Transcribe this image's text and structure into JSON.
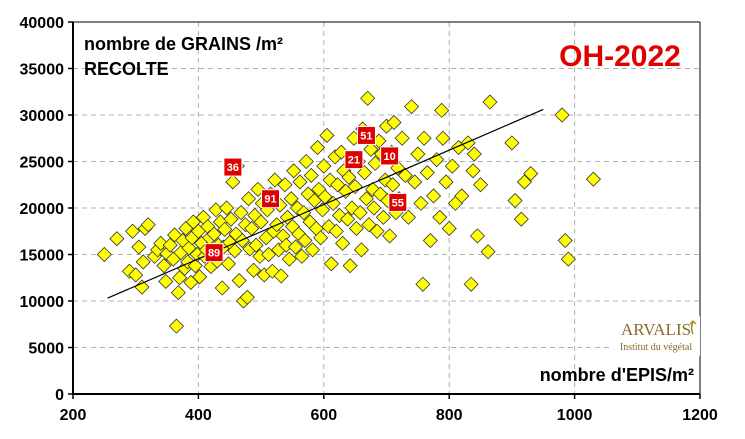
{
  "chart_data": {
    "type": "scatter",
    "title": "OH-2022",
    "ylabel_line1": "nombre de GRAINS /m²",
    "ylabel_line2": "RECOLTE",
    "xlabel": "nombre d'EPIS/m²",
    "xlim": [
      200,
      1200
    ],
    "ylim": [
      0,
      40000
    ],
    "xticks": [
      "200",
      "400",
      "600",
      "800",
      "1000",
      "1200"
    ],
    "yticks": [
      "0",
      "5000",
      "10000",
      "15000",
      "20000",
      "25000",
      "30000",
      "35000",
      "40000"
    ],
    "grid": "dashed",
    "colors": {
      "marker": "#ffff00",
      "marker_edge": "#333333",
      "badge": "#e00000",
      "title": "#e00000",
      "trend": "#000000"
    },
    "trendline": {
      "x": [
        255,
        950
      ],
      "y": [
        10300,
        30600
      ]
    },
    "points": [
      [
        250,
        15000
      ],
      [
        270,
        16700
      ],
      [
        290,
        13200
      ],
      [
        295,
        17500
      ],
      [
        300,
        12800
      ],
      [
        305,
        15800
      ],
      [
        310,
        11500
      ],
      [
        312,
        14200
      ],
      [
        315,
        17800
      ],
      [
        320,
        18200
      ],
      [
        330,
        14800
      ],
      [
        335,
        15500
      ],
      [
        340,
        16200
      ],
      [
        345,
        13800
      ],
      [
        348,
        12100
      ],
      [
        350,
        15100
      ],
      [
        355,
        16000
      ],
      [
        360,
        14500
      ],
      [
        362,
        17100
      ],
      [
        365,
        7300
      ],
      [
        368,
        10900
      ],
      [
        370,
        12500
      ],
      [
        372,
        15200
      ],
      [
        375,
        16500
      ],
      [
        378,
        13500
      ],
      [
        380,
        17800
      ],
      [
        383,
        14200
      ],
      [
        385,
        15700
      ],
      [
        388,
        12000
      ],
      [
        390,
        16800
      ],
      [
        392,
        18500
      ],
      [
        395,
        13800
      ],
      [
        398,
        15000
      ],
      [
        400,
        17500
      ],
      [
        402,
        12600
      ],
      [
        405,
        16200
      ],
      [
        408,
        19000
      ],
      [
        410,
        14800
      ],
      [
        413,
        15500
      ],
      [
        415,
        18000
      ],
      [
        418,
        16800
      ],
      [
        420,
        13700
      ],
      [
        422,
        15200
      ],
      [
        425,
        17200
      ],
      [
        428,
        19800
      ],
      [
        430,
        14300
      ],
      [
        432,
        16000
      ],
      [
        435,
        18500
      ],
      [
        438,
        11400
      ],
      [
        440,
        15800
      ],
      [
        442,
        17700
      ],
      [
        445,
        20000
      ],
      [
        448,
        14000
      ],
      [
        450,
        16300
      ],
      [
        452,
        18800
      ],
      [
        455,
        22800
      ],
      [
        458,
        15400
      ],
      [
        460,
        17200
      ],
      [
        462,
        24500
      ],
      [
        465,
        12200
      ],
      [
        468,
        19500
      ],
      [
        470,
        16500
      ],
      [
        472,
        10000
      ],
      [
        475,
        18200
      ],
      [
        478,
        10400
      ],
      [
        480,
        21000
      ],
      [
        482,
        15600
      ],
      [
        485,
        17800
      ],
      [
        488,
        13300
      ],
      [
        490,
        19200
      ],
      [
        492,
        16000
      ],
      [
        495,
        22000
      ],
      [
        498,
        14800
      ],
      [
        500,
        18500
      ],
      [
        502,
        20500
      ],
      [
        505,
        12800
      ],
      [
        508,
        16800
      ],
      [
        510,
        19800
      ],
      [
        512,
        15000
      ],
      [
        515,
        21500
      ],
      [
        518,
        13200
      ],
      [
        520,
        17500
      ],
      [
        522,
        23000
      ],
      [
        525,
        18200
      ],
      [
        528,
        15500
      ],
      [
        530,
        20300
      ],
      [
        532,
        12700
      ],
      [
        535,
        17000
      ],
      [
        538,
        22500
      ],
      [
        540,
        16000
      ],
      [
        542,
        19000
      ],
      [
        545,
        14500
      ],
      [
        548,
        21000
      ],
      [
        550,
        18000
      ],
      [
        552,
        24000
      ],
      [
        555,
        15800
      ],
      [
        558,
        20000
      ],
      [
        560,
        17200
      ],
      [
        562,
        22800
      ],
      [
        565,
        14800
      ],
      [
        568,
        19500
      ],
      [
        570,
        16500
      ],
      [
        572,
        25000
      ],
      [
        575,
        21500
      ],
      [
        578,
        18500
      ],
      [
        580,
        23500
      ],
      [
        582,
        15500
      ],
      [
        585,
        20800
      ],
      [
        588,
        17800
      ],
      [
        590,
        26500
      ],
      [
        592,
        22000
      ],
      [
        595,
        16800
      ],
      [
        598,
        19800
      ],
      [
        600,
        24500
      ],
      [
        602,
        21200
      ],
      [
        605,
        27800
      ],
      [
        608,
        18000
      ],
      [
        610,
        23000
      ],
      [
        612,
        14000
      ],
      [
        615,
        20500
      ],
      [
        618,
        25500
      ],
      [
        620,
        17500
      ],
      [
        622,
        22500
      ],
      [
        625,
        19200
      ],
      [
        628,
        26000
      ],
      [
        630,
        16200
      ],
      [
        632,
        24000
      ],
      [
        635,
        21800
      ],
      [
        638,
        18800
      ],
      [
        640,
        23300
      ],
      [
        642,
        13800
      ],
      [
        645,
        20000
      ],
      [
        648,
        27500
      ],
      [
        650,
        22300
      ],
      [
        652,
        17800
      ],
      [
        655,
        25000
      ],
      [
        658,
        19500
      ],
      [
        660,
        15500
      ],
      [
        662,
        28500
      ],
      [
        665,
        23800
      ],
      [
        668,
        21000
      ],
      [
        670,
        31800
      ],
      [
        672,
        18200
      ],
      [
        675,
        26300
      ],
      [
        678,
        22000
      ],
      [
        680,
        20000
      ],
      [
        682,
        24800
      ],
      [
        685,
        17500
      ],
      [
        688,
        27200
      ],
      [
        690,
        21500
      ],
      [
        692,
        25800
      ],
      [
        695,
        19000
      ],
      [
        698,
        23000
      ],
      [
        700,
        28800
      ],
      [
        702,
        20800
      ],
      [
        705,
        17000
      ],
      [
        708,
        26000
      ],
      [
        710,
        22500
      ],
      [
        712,
        29200
      ],
      [
        715,
        19500
      ],
      [
        718,
        24300
      ],
      [
        720,
        21000
      ],
      [
        725,
        27500
      ],
      [
        730,
        23500
      ],
      [
        735,
        19000
      ],
      [
        740,
        30900
      ],
      [
        745,
        22800
      ],
      [
        750,
        25800
      ],
      [
        755,
        20500
      ],
      [
        758,
        11800
      ],
      [
        760,
        27500
      ],
      [
        765,
        23800
      ],
      [
        770,
        16500
      ],
      [
        775,
        21300
      ],
      [
        780,
        25200
      ],
      [
        785,
        19000
      ],
      [
        788,
        30500
      ],
      [
        790,
        27500
      ],
      [
        795,
        22800
      ],
      [
        800,
        17800
      ],
      [
        805,
        24500
      ],
      [
        810,
        20500
      ],
      [
        815,
        26500
      ],
      [
        820,
        21300
      ],
      [
        830,
        27000
      ],
      [
        835,
        11800
      ],
      [
        838,
        24000
      ],
      [
        840,
        25800
      ],
      [
        845,
        17000
      ],
      [
        850,
        22500
      ],
      [
        862,
        15300
      ],
      [
        865,
        31400
      ],
      [
        900,
        27000
      ],
      [
        905,
        20800
      ],
      [
        915,
        18800
      ],
      [
        920,
        22800
      ],
      [
        930,
        23700
      ],
      [
        980,
        30000
      ],
      [
        985,
        16500
      ],
      [
        990,
        14500
      ],
      [
        1030,
        23100
      ]
    ],
    "labeled_points": [
      {
        "label": "36",
        "x": 455,
        "y": 24400
      },
      {
        "label": "51",
        "x": 668,
        "y": 27800
      },
      {
        "label": "21",
        "x": 648,
        "y": 25200
      },
      {
        "label": "10",
        "x": 705,
        "y": 25600
      },
      {
        "label": "91",
        "x": 515,
        "y": 21000
      },
      {
        "label": "55",
        "x": 718,
        "y": 20600
      },
      {
        "label": "89",
        "x": 425,
        "y": 15200
      }
    ],
    "logo": {
      "name": "ARVALIS",
      "subtitle": "Institut du végétal"
    }
  }
}
